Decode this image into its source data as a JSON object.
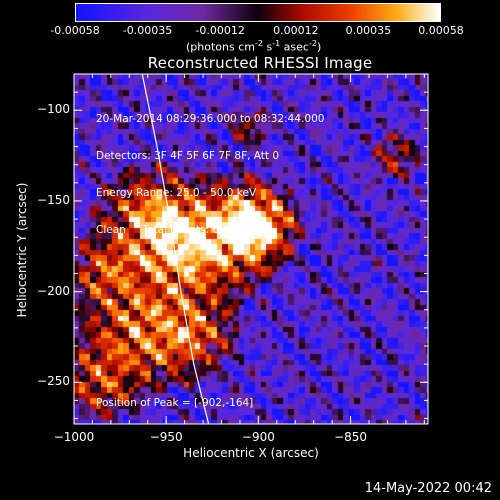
{
  "chart_data": {
    "type": "heatmap",
    "title": "Reconstructed RHESSI Image",
    "xlabel": "Heliocentric X (arcsec)",
    "ylabel": "Heliocentric Y (arcsec)",
    "xlim": [
      -1000,
      -808
    ],
    "ylim": [
      -273,
      -80
    ],
    "xticks": [
      -1000,
      -950,
      -900,
      -850
    ],
    "yticks": [
      -100,
      -150,
      -200,
      -250
    ],
    "colorbar": {
      "range": [
        -0.00058,
        0.00058
      ],
      "ticks": [
        "-0.00058",
        "-0.00035",
        "-0.00012",
        "0.00012",
        "0.00035",
        "0.00058"
      ],
      "tick_values": [
        -0.00058,
        -0.00035,
        -0.00012,
        0.00012,
        0.00035,
        0.00058
      ],
      "unit_text": "(photons cm",
      "unit_exp1": "-2",
      "unit_mid": " s",
      "unit_exp2": "-1",
      "unit_mid2": " asec",
      "unit_exp3": "-2",
      "unit_end": ")"
    },
    "annotations": {
      "line1": "20-Mar-2014 08:29:36.000 to 08:32:44.000",
      "line2": "Detectors: 3F 4F 5F 6F 7F 8F, Att 0",
      "line3": "Energy Range: 25.0 - 50.0 keV",
      "line4": "Clean     Total counts: 6.41E+03",
      "peak": "Position of Peak = [-902,-164]"
    },
    "peak": [
      -902,
      -164
    ],
    "limb_curve": [
      [
        -963,
        -80
      ],
      [
        -955,
        -120
      ],
      [
        -948,
        -160
      ],
      [
        -942,
        -200
      ],
      [
        -935,
        -240
      ],
      [
        -927,
        -273
      ]
    ],
    "sources": [
      {
        "x": -902,
        "y": -164,
        "amp": 1.0,
        "sigma": 14
      },
      {
        "x": -935,
        "y": -175,
        "amp": 0.75,
        "sigma": 20
      },
      {
        "x": -960,
        "y": -160,
        "amp": 0.55,
        "sigma": 18
      },
      {
        "x": -965,
        "y": -220,
        "amp": 0.55,
        "sigma": 20
      },
      {
        "x": -985,
        "y": -250,
        "amp": 0.45,
        "sigma": 14
      },
      {
        "x": -935,
        "y": -225,
        "amp": 0.45,
        "sigma": 15
      },
      {
        "x": -985,
        "y": -190,
        "amp": 0.4,
        "sigma": 12
      },
      {
        "x": -825,
        "y": -125,
        "amp": 0.35,
        "sigma": 10
      },
      {
        "x": -905,
        "y": -110,
        "amp": 0.25,
        "sigma": 10
      }
    ]
  },
  "footer": {
    "date": "14-May-2022 00:42"
  }
}
